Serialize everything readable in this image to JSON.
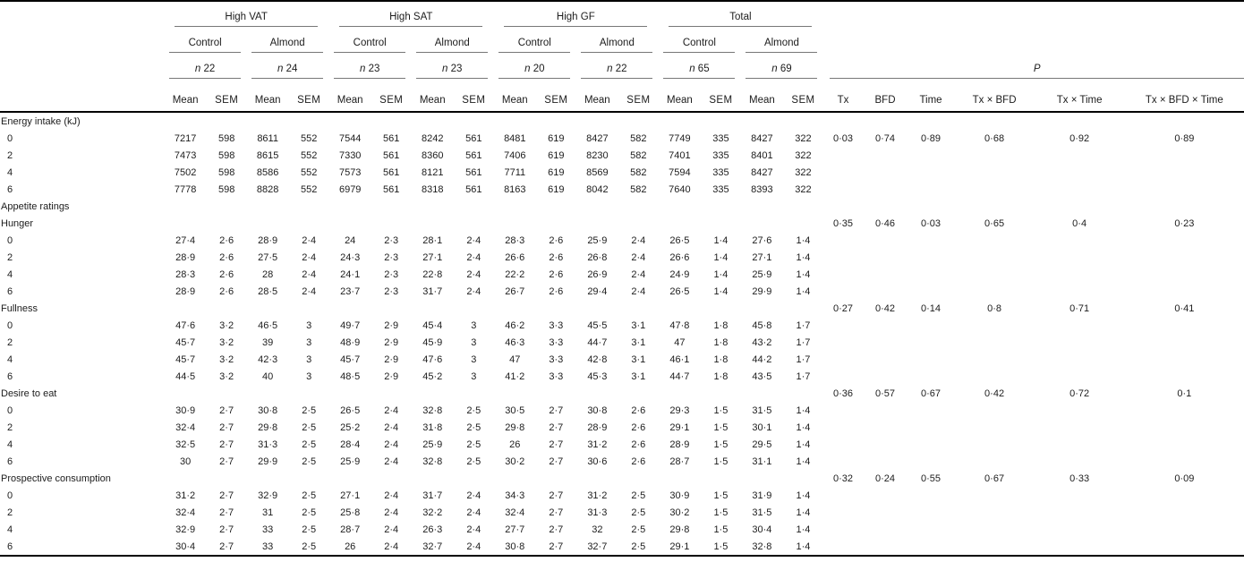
{
  "header": {
    "control_label": "Control",
    "almond_label": "Almond",
    "n_label": "n",
    "mean_label": "Mean",
    "sem_label": "SEM",
    "p_label": "P",
    "groups": [
      {
        "label": "High VAT",
        "n_control": "22",
        "n_almond": "24"
      },
      {
        "label": "High SAT",
        "n_control": "23",
        "n_almond": "23"
      },
      {
        "label": "High GF",
        "n_control": "20",
        "n_almond": "22"
      },
      {
        "label": "Total",
        "n_control": "65",
        "n_almond": "69"
      }
    ],
    "p_cols": [
      "Tx",
      "BFD",
      "Time",
      "Tx × BFD",
      "Tx × Time",
      "Tx × BFD × Time"
    ]
  },
  "chart_data": {
    "type": "table",
    "columns": [
      "High VAT Control Mean",
      "High VAT Control SEM",
      "High VAT Almond Mean",
      "High VAT Almond SEM",
      "High SAT Control Mean",
      "High SAT Control SEM",
      "High SAT Almond Mean",
      "High SAT Almond SEM",
      "High GF Control Mean",
      "High GF Control SEM",
      "High GF Almond Mean",
      "High GF Almond SEM",
      "Total Control Mean",
      "Total Control SEM",
      "Total Almond Mean",
      "Total Almond SEM"
    ],
    "p_columns": [
      "Tx",
      "BFD",
      "Time",
      "Tx × BFD",
      "Tx × Time",
      "Tx × BFD × Time"
    ]
  },
  "body": {
    "sections": [
      {
        "label": "Energy intake (kJ)",
        "p_row": "first-data",
        "p": [
          "0·03",
          "0·74",
          "0·89",
          "0·68",
          "0·92",
          "0·89"
        ],
        "rows": [
          {
            "t": "0",
            "v": [
              "7217",
              "598",
              "8611",
              "552",
              "7544",
              "561",
              "8242",
              "561",
              "8481",
              "619",
              "8427",
              "582",
              "7749",
              "335",
              "8427",
              "322"
            ]
          },
          {
            "t": "2",
            "v": [
              "7473",
              "598",
              "8615",
              "552",
              "7330",
              "561",
              "8360",
              "561",
              "7406",
              "619",
              "8230",
              "582",
              "7401",
              "335",
              "8401",
              "322"
            ]
          },
          {
            "t": "4",
            "v": [
              "7502",
              "598",
              "8586",
              "552",
              "7573",
              "561",
              "8121",
              "561",
              "7711",
              "619",
              "8569",
              "582",
              "7594",
              "335",
              "8427",
              "322"
            ]
          },
          {
            "t": "6",
            "v": [
              "7778",
              "598",
              "8828",
              "552",
              "6979",
              "561",
              "8318",
              "561",
              "8163",
              "619",
              "8042",
              "582",
              "7640",
              "335",
              "8393",
              "322"
            ]
          }
        ]
      },
      {
        "label": "Appetite ratings",
        "p_row": "none",
        "p": [],
        "rows": []
      },
      {
        "label": "Hunger",
        "p_row": "label",
        "p": [
          "0·35",
          "0·46",
          "0·03",
          "0·65",
          "0·4",
          "0·23"
        ],
        "rows": [
          {
            "t": "0",
            "v": [
              "27·4",
              "2·6",
              "28·9",
              "2·4",
              "24",
              "2·3",
              "28·1",
              "2·4",
              "28·3",
              "2·6",
              "25·9",
              "2·4",
              "26·5",
              "1·4",
              "27·6",
              "1·4"
            ]
          },
          {
            "t": "2",
            "v": [
              "28·9",
              "2·6",
              "27·5",
              "2·4",
              "24·3",
              "2·3",
              "27·1",
              "2·4",
              "26·6",
              "2·6",
              "26·8",
              "2·4",
              "26·6",
              "1·4",
              "27·1",
              "1·4"
            ]
          },
          {
            "t": "4",
            "v": [
              "28·3",
              "2·6",
              "28",
              "2·4",
              "24·1",
              "2·3",
              "22·8",
              "2·4",
              "22·2",
              "2·6",
              "26·9",
              "2·4",
              "24·9",
              "1·4",
              "25·9",
              "1·4"
            ]
          },
          {
            "t": "6",
            "v": [
              "28·9",
              "2·6",
              "28·5",
              "2·4",
              "23·7",
              "2·3",
              "31·7",
              "2·4",
              "26·7",
              "2·6",
              "29·4",
              "2·4",
              "26·5",
              "1·4",
              "29·9",
              "1·4"
            ]
          }
        ]
      },
      {
        "label": "Fullness",
        "p_row": "label",
        "p": [
          "0·27",
          "0·42",
          "0·14",
          "0·8",
          "0·71",
          "0·41"
        ],
        "rows": [
          {
            "t": "0",
            "v": [
              "47·6",
              "3·2",
              "46·5",
              "3",
              "49·7",
              "2·9",
              "45·4",
              "3",
              "46·2",
              "3·3",
              "45·5",
              "3·1",
              "47·8",
              "1·8",
              "45·8",
              "1·7"
            ]
          },
          {
            "t": "2",
            "v": [
              "45·7",
              "3·2",
              "39",
              "3",
              "48·9",
              "2·9",
              "45·9",
              "3",
              "46·3",
              "3·3",
              "44·7",
              "3·1",
              "47",
              "1·8",
              "43·2",
              "1·7"
            ]
          },
          {
            "t": "4",
            "v": [
              "45·7",
              "3·2",
              "42·3",
              "3",
              "45·7",
              "2·9",
              "47·6",
              "3",
              "47",
              "3·3",
              "42·8",
              "3·1",
              "46·1",
              "1·8",
              "44·2",
              "1·7"
            ]
          },
          {
            "t": "6",
            "v": [
              "44·5",
              "3·2",
              "40",
              "3",
              "48·5",
              "2·9",
              "45·2",
              "3",
              "41·2",
              "3·3",
              "45·3",
              "3·1",
              "44·7",
              "1·8",
              "43·5",
              "1·7"
            ]
          }
        ]
      },
      {
        "label": "Desire to eat",
        "p_row": "label",
        "p": [
          "0·36",
          "0·57",
          "0·67",
          "0·42",
          "0·72",
          "0·1"
        ],
        "rows": [
          {
            "t": "0",
            "v": [
              "30·9",
              "2·7",
              "30·8",
              "2·5",
              "26·5",
              "2·4",
              "32·8",
              "2·5",
              "30·5",
              "2·7",
              "30·8",
              "2·6",
              "29·3",
              "1·5",
              "31·5",
              "1·4"
            ]
          },
          {
            "t": "2",
            "v": [
              "32·4",
              "2·7",
              "29·8",
              "2·5",
              "25·2",
              "2·4",
              "31·8",
              "2·5",
              "29·8",
              "2·7",
              "28·9",
              "2·6",
              "29·1",
              "1·5",
              "30·1",
              "1·4"
            ]
          },
          {
            "t": "4",
            "v": [
              "32·5",
              "2·7",
              "31·3",
              "2·5",
              "28·4",
              "2·4",
              "25·9",
              "2·5",
              "26",
              "2·7",
              "31·2",
              "2·6",
              "28·9",
              "1·5",
              "29·5",
              "1·4"
            ]
          },
          {
            "t": "6",
            "v": [
              "30",
              "2·7",
              "29·9",
              "2·5",
              "25·9",
              "2·4",
              "32·8",
              "2·5",
              "30·2",
              "2·7",
              "30·6",
              "2·6",
              "28·7",
              "1·5",
              "31·1",
              "1·4"
            ]
          }
        ]
      },
      {
        "label": "Prospective consumption",
        "p_row": "label",
        "p": [
          "0·32",
          "0·24",
          "0·55",
          "0·67",
          "0·33",
          "0·09"
        ],
        "rows": [
          {
            "t": "0",
            "v": [
              "31·2",
              "2·7",
              "32·9",
              "2·5",
              "27·1",
              "2·4",
              "31·7",
              "2·4",
              "34·3",
              "2·7",
              "31·2",
              "2·5",
              "30·9",
              "1·5",
              "31·9",
              "1·4"
            ]
          },
          {
            "t": "2",
            "v": [
              "32·4",
              "2·7",
              "31",
              "2·5",
              "25·8",
              "2·4",
              "32·2",
              "2·4",
              "32·4",
              "2·7",
              "31·3",
              "2·5",
              "30·2",
              "1·5",
              "31·5",
              "1·4"
            ]
          },
          {
            "t": "4",
            "v": [
              "32·9",
              "2·7",
              "33",
              "2·5",
              "28·7",
              "2·4",
              "26·3",
              "2·4",
              "27·7",
              "2·7",
              "32",
              "2·5",
              "29·8",
              "1·5",
              "30·4",
              "1·4"
            ]
          },
          {
            "t": "6",
            "v": [
              "30·4",
              "2·7",
              "33",
              "2·5",
              "26",
              "2·4",
              "32·7",
              "2·4",
              "30·8",
              "2·7",
              "32·7",
              "2·5",
              "29·1",
              "1·5",
              "32·8",
              "1·4"
            ]
          }
        ]
      }
    ]
  }
}
